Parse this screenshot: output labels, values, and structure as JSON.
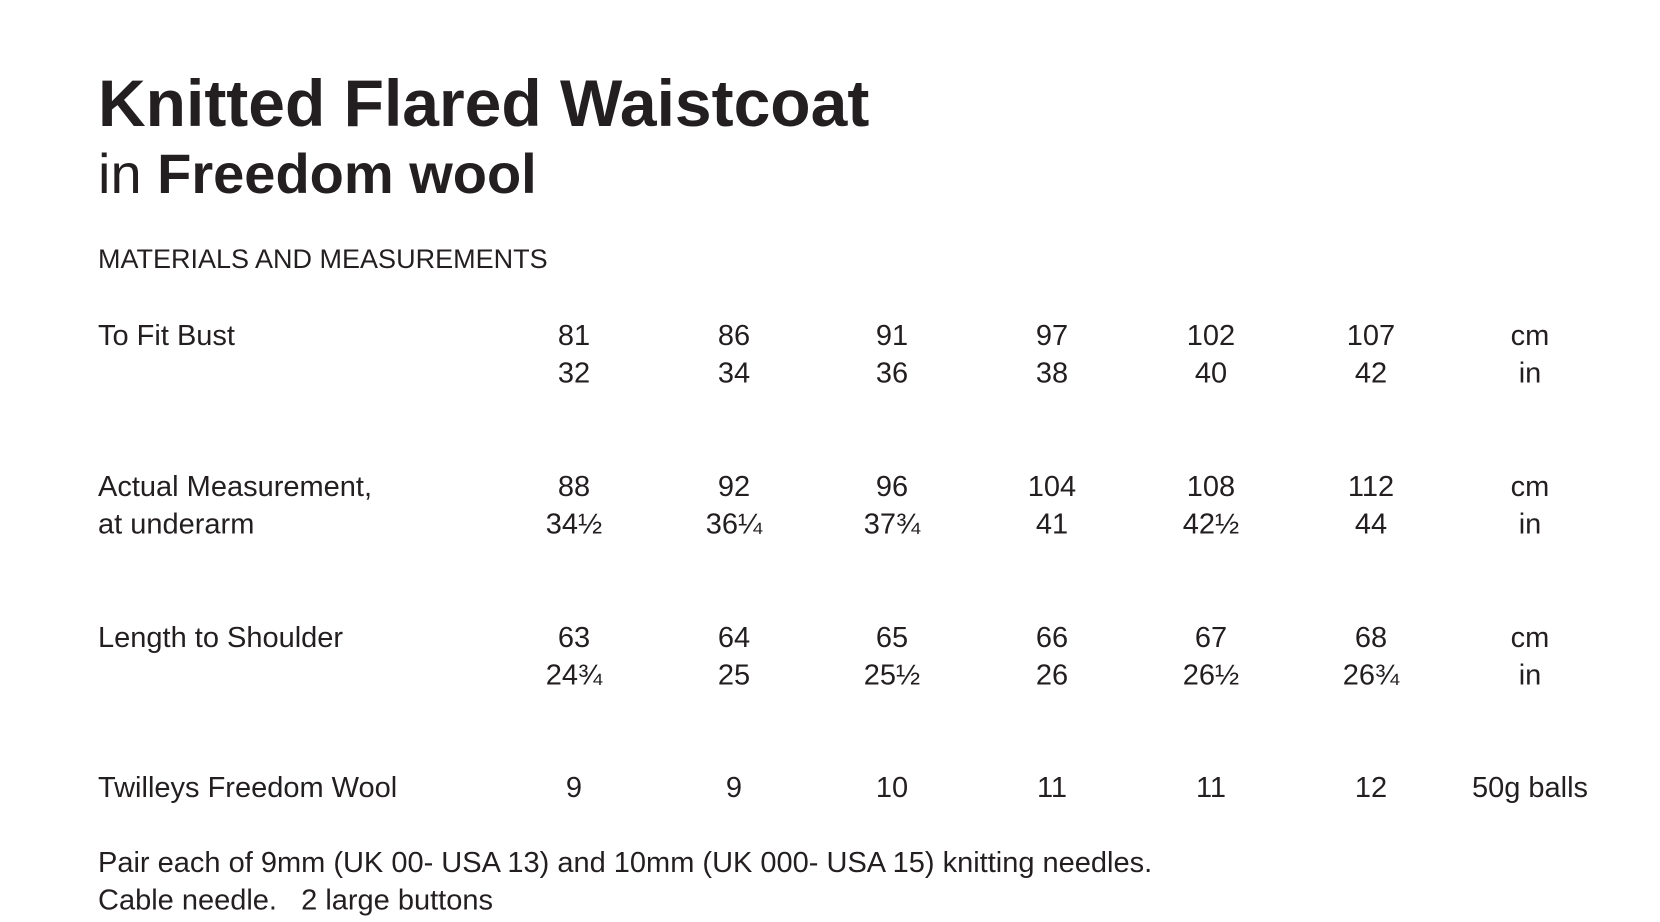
{
  "header": {
    "title": "Knitted Flared Waistcoat",
    "subtitle_prefix": "in",
    "subtitle_bold": "Freedom wool"
  },
  "section_heading": "MATERIALS AND MEASUREMENTS",
  "table": {
    "rows": [
      {
        "label": [
          "To Fit Bust"
        ],
        "lines": [
          {
            "values": [
              "81",
              "86",
              "91",
              "97",
              "102",
              "107"
            ],
            "unit": "cm"
          },
          {
            "values": [
              "32",
              "34",
              "36",
              "38",
              "40",
              "42"
            ],
            "unit": "in"
          }
        ]
      },
      {
        "label": [
          "Actual Measurement,",
          "at underarm"
        ],
        "lines": [
          {
            "values": [
              "88",
              "92",
              "96",
              "104",
              "108",
              "112"
            ],
            "unit": "cm"
          },
          {
            "values": [
              "34½",
              "36¼",
              "37¾",
              "41",
              "42½",
              "44"
            ],
            "unit": "in"
          }
        ]
      },
      {
        "label": [
          "Length to Shoulder"
        ],
        "lines": [
          {
            "values": [
              "63",
              "64",
              "65",
              "66",
              "67",
              "68"
            ],
            "unit": "cm"
          },
          {
            "values": [
              "24¾",
              "25",
              "25½",
              "26",
              "26½",
              "26¾"
            ],
            "unit": "in"
          }
        ]
      },
      {
        "label": [
          "Twilleys Freedom Wool"
        ],
        "lines": [
          {
            "values": [
              "9",
              "9",
              "10",
              "11",
              "11",
              "12"
            ],
            "unit": "50g balls"
          }
        ]
      }
    ]
  },
  "footer": [
    "Pair each of 9mm (UK 00- USA 13) and 10mm (UK 000- USA 15) knitting needles.",
    "Cable needle.   2 large buttons"
  ]
}
